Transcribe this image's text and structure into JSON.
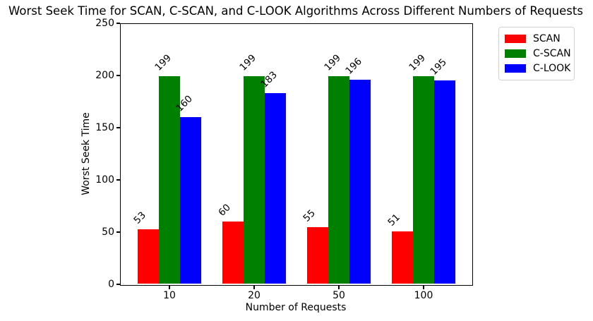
{
  "chart_data": {
    "type": "bar",
    "title": "Worst Seek Time for SCAN, C-SCAN, and C-LOOK Algorithms Across Different Numbers of Requests",
    "xlabel": "Number of Requests",
    "ylabel": "Worst Seek Time",
    "categories": [
      "10",
      "20",
      "50",
      "100"
    ],
    "series": [
      {
        "name": "SCAN",
        "color": "#ff0000",
        "values": [
          53,
          60,
          55,
          51
        ]
      },
      {
        "name": "C-SCAN",
        "color": "#008000",
        "values": [
          199,
          199,
          199,
          199
        ]
      },
      {
        "name": "C-LOOK",
        "color": "#0000ff",
        "values": [
          160,
          183,
          196,
          195
        ]
      }
    ],
    "ylim": [
      0,
      250
    ],
    "yticks": [
      0,
      50,
      100,
      150,
      200,
      250
    ],
    "bar_value_labels_rotation_deg": 45,
    "grid": "off",
    "legend_position": "outside-top-right",
    "plot_background": "#ffffff",
    "axis_color": "#000000"
  }
}
